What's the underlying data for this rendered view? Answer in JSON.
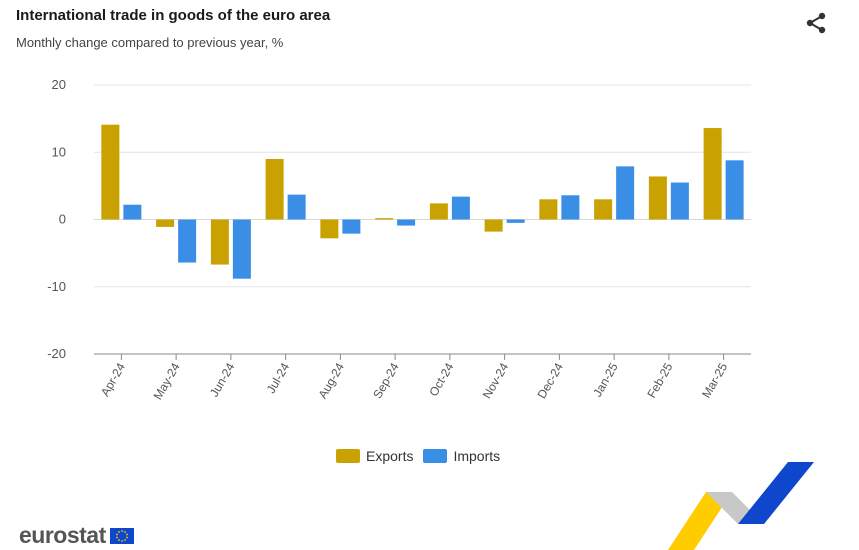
{
  "header": {
    "title": "International trade in goods of the euro area",
    "subtitle": "Monthly change compared to previous year, %"
  },
  "legend": {
    "exports_label": "Exports",
    "imports_label": "Imports"
  },
  "brand": {
    "name": "eurostat"
  },
  "colors": {
    "exports": "#c9a100",
    "imports": "#3a8ee6",
    "eu_blue": "#0e47cb",
    "eu_yellow": "#ffcc00"
  },
  "icons": {
    "share": "share-icon"
  },
  "chart_data": {
    "type": "bar",
    "categories": [
      "Apr-24",
      "May-24",
      "Jun-24",
      "Jul-24",
      "Aug-24",
      "Sep-24",
      "Oct-24",
      "Nov-24",
      "Dec-24",
      "Jan-25",
      "Feb-25",
      "Mar-25"
    ],
    "series": [
      {
        "name": "Exports",
        "values": [
          14.1,
          -1.1,
          -6.7,
          9.0,
          -2.8,
          0.2,
          2.4,
          -1.8,
          3.0,
          3.0,
          6.4,
          13.6
        ]
      },
      {
        "name": "Imports",
        "values": [
          2.2,
          -6.4,
          -8.8,
          3.7,
          -2.1,
          -0.9,
          3.4,
          -0.5,
          3.6,
          7.9,
          5.5,
          8.8
        ]
      }
    ],
    "ylim": [
      -20,
      20
    ],
    "yticks": [
      20,
      10,
      0,
      -10,
      -20
    ],
    "grid": true,
    "legend_position": "bottom"
  }
}
